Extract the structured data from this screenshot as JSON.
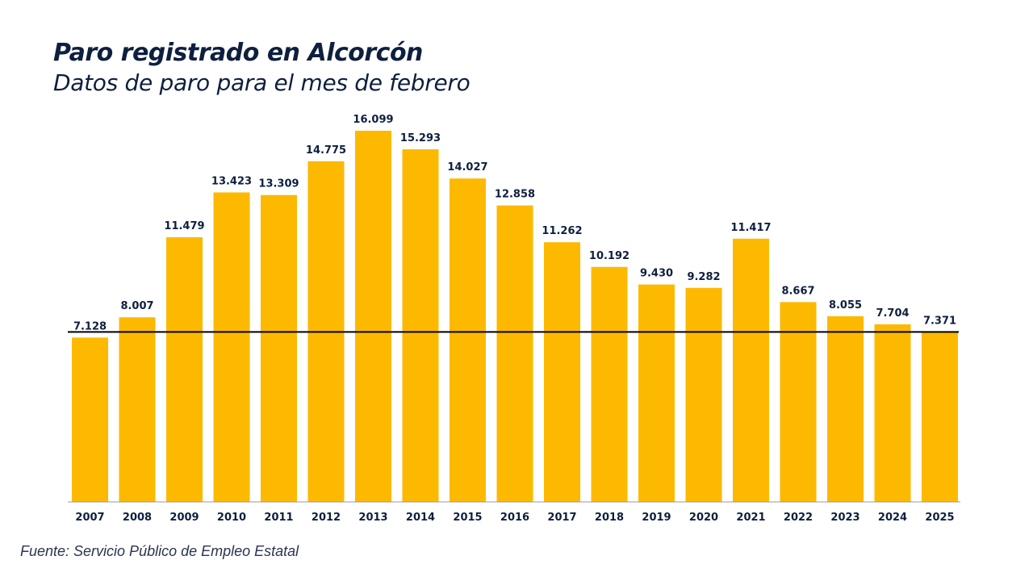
{
  "chart_data": {
    "type": "bar",
    "title": "Paro registrado en Alcorcón",
    "subtitle": "Datos de paro para el mes de febrero",
    "source": "Fuente: Servicio Público de Empleo Estatal",
    "categories": [
      "2007",
      "2008",
      "2009",
      "2010",
      "2011",
      "2012",
      "2013",
      "2014",
      "2015",
      "2016",
      "2017",
      "2018",
      "2019",
      "2020",
      "2021",
      "2022",
      "2023",
      "2024",
      "2025"
    ],
    "values": [
      7128,
      8007,
      11479,
      13423,
      13309,
      14775,
      16099,
      15293,
      14027,
      12858,
      11262,
      10192,
      9430,
      9282,
      11417,
      8667,
      8055,
      7704,
      7371
    ],
    "data_labels": [
      "7.128",
      "8.007",
      "11.479",
      "13.423",
      "13.309",
      "14.775",
      "16.099",
      "15.293",
      "14.027",
      "12.858",
      "11.262",
      "10.192",
      "9.430",
      "9.282",
      "11.417",
      "8.667",
      "8.055",
      "7.704",
      "7.371"
    ],
    "reference_line": 7371,
    "ylim": [
      0,
      16099
    ],
    "grid": false,
    "xlabel": "",
    "ylabel": "",
    "colors": {
      "bar": "#FDB900",
      "text": "#0E1F3F",
      "reference_line": "#000000"
    }
  }
}
